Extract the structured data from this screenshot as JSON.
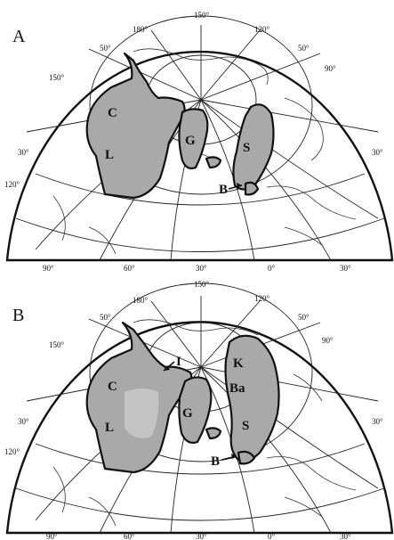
{
  "panels": [
    {
      "letter": "A",
      "meridian_labels_top": [
        "180°",
        "150°",
        "120°"
      ],
      "meridian_labels_bottom": [
        "90°",
        "60°",
        "30°",
        "0°",
        "30°"
      ],
      "latitude_labels": [
        "50°",
        "50°",
        "150°",
        "90°",
        "30°",
        "30°",
        "120°"
      ],
      "region_labels": [
        "C",
        "L",
        "G",
        "S",
        "B"
      ]
    },
    {
      "letter": "B",
      "meridian_labels_top": [
        "180°",
        "150°",
        "120°"
      ],
      "meridian_labels_bottom": [
        "90°",
        "60°",
        "30°",
        "0°",
        "30°"
      ],
      "latitude_labels": [
        "50°",
        "50°",
        "150°",
        "90°",
        "30°",
        "30°",
        "120°"
      ],
      "region_labels": [
        "C",
        "L",
        "I",
        "G",
        "K",
        "Ba",
        "S",
        "B"
      ]
    }
  ]
}
